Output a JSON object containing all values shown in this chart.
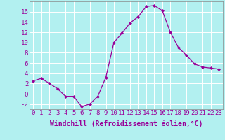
{
  "x": [
    0,
    1,
    2,
    3,
    4,
    5,
    6,
    7,
    8,
    9,
    10,
    11,
    12,
    13,
    14,
    15,
    16,
    17,
    18,
    19,
    20,
    21,
    22,
    23
  ],
  "y": [
    2.5,
    3.0,
    2.0,
    1.0,
    -0.5,
    -0.5,
    -2.5,
    -2.0,
    -0.5,
    3.2,
    10.0,
    11.8,
    13.8,
    15.0,
    17.0,
    17.2,
    16.2,
    12.0,
    9.0,
    7.5,
    5.8,
    5.2,
    5.0,
    4.8
  ],
  "line_color": "#990099",
  "marker": "D",
  "marker_size": 2,
  "bg_color": "#b2f0f0",
  "grid_color": "#aadddd",
  "xlabel": "Windchill (Refroidissement éolien,°C)",
  "xlabel_fontsize": 7,
  "tick_fontsize": 6.5,
  "ylim": [
    -3,
    18
  ],
  "xlim": [
    -0.5,
    23.5
  ],
  "yticks": [
    -2,
    0,
    2,
    4,
    6,
    8,
    10,
    12,
    14,
    16
  ],
  "xticks": [
    0,
    1,
    2,
    3,
    4,
    5,
    6,
    7,
    8,
    9,
    10,
    11,
    12,
    13,
    14,
    15,
    16,
    17,
    18,
    19,
    20,
    21,
    22,
    23
  ]
}
